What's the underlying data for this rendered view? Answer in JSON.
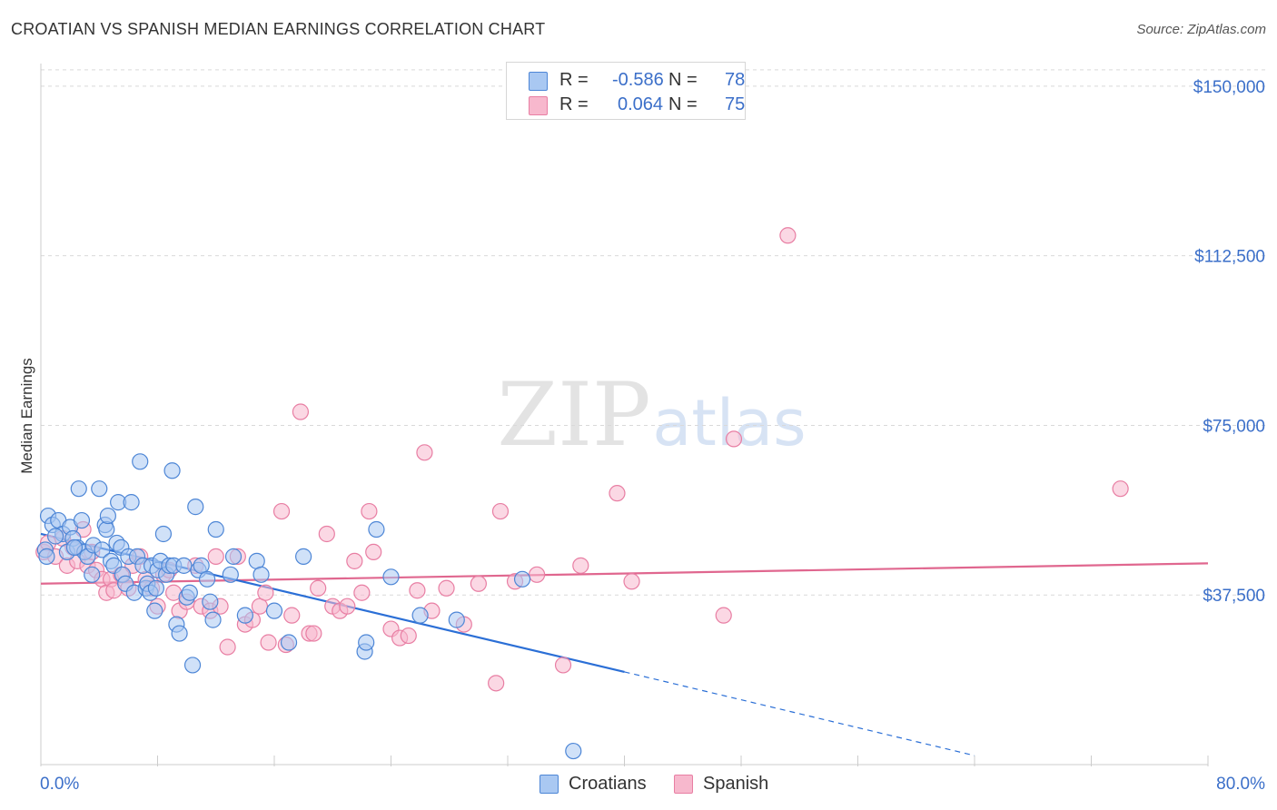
{
  "header": {
    "title": "CROATIAN VS SPANISH MEDIAN EARNINGS CORRELATION CHART",
    "source": "Source: ZipAtlas.com"
  },
  "watermark": {
    "zip": "ZIP",
    "atlas": "atlas"
  },
  "legend": {
    "rows": [
      {
        "r_label": "R =",
        "r_value": "-0.586",
        "n_label": "N =",
        "n_value": "78"
      },
      {
        "r_label": "R =",
        "r_value": "0.064",
        "n_label": "N =",
        "n_value": "75"
      }
    ]
  },
  "bottom_legend": {
    "croatians": "Croatians",
    "spanish": "Spanish"
  },
  "colors": {
    "croatians_fill": "#a9c8f2",
    "croatians_stroke": "#4d86d6",
    "croatians_line": "#2b6fd6",
    "spanish_fill": "#f7b8cd",
    "spanish_stroke": "#e87ea3",
    "spanish_line": "#e0678f",
    "tick_text": "#3b6fc9",
    "grid": "#d9d9d9"
  },
  "chart_data": {
    "type": "scatter",
    "title": "CROATIAN VS SPANISH MEDIAN EARNINGS CORRELATION CHART",
    "xlabel": "",
    "ylabel": "Median Earnings",
    "xlim": [
      0,
      80
    ],
    "ylim": [
      0,
      155000
    ],
    "x_tick_labels": [
      "0.0%",
      "80.0%"
    ],
    "y_ticks": [
      37500,
      75000,
      112500,
      150000
    ],
    "y_tick_labels": [
      "$37,500",
      "$75,000",
      "$112,500",
      "$150,000"
    ],
    "grid": true,
    "series": [
      {
        "name": "Croatians",
        "r": -0.586,
        "n": 78,
        "trend": {
          "x0": 0,
          "y0": 51000,
          "x1": 40,
          "y1": 20500,
          "dash_to_x": 64,
          "dash_to_y": 2000
        },
        "points": [
          [
            0.3,
            47500
          ],
          [
            0.4,
            46000
          ],
          [
            0.5,
            55000
          ],
          [
            0.8,
            53000
          ],
          [
            1.2,
            54000
          ],
          [
            1.5,
            51000
          ],
          [
            1.8,
            47000
          ],
          [
            2.0,
            52500
          ],
          [
            2.2,
            50000
          ],
          [
            2.5,
            48000
          ],
          [
            2.6,
            61000
          ],
          [
            2.8,
            54000
          ],
          [
            3.0,
            47000
          ],
          [
            3.2,
            46000
          ],
          [
            3.5,
            42000
          ],
          [
            3.6,
            48500
          ],
          [
            4.0,
            61000
          ],
          [
            4.2,
            47500
          ],
          [
            4.4,
            53000
          ],
          [
            4.5,
            52000
          ],
          [
            4.6,
            55000
          ],
          [
            4.8,
            45000
          ],
          [
            5.0,
            44000
          ],
          [
            5.2,
            49000
          ],
          [
            5.3,
            58000
          ],
          [
            5.5,
            48000
          ],
          [
            5.6,
            42000
          ],
          [
            5.8,
            40000
          ],
          [
            6.0,
            46000
          ],
          [
            6.2,
            58000
          ],
          [
            6.4,
            38000
          ],
          [
            6.6,
            46000
          ],
          [
            6.8,
            67000
          ],
          [
            7.0,
            44000
          ],
          [
            7.2,
            39000
          ],
          [
            7.3,
            40000
          ],
          [
            7.5,
            38000
          ],
          [
            7.6,
            44000
          ],
          [
            7.8,
            34000
          ],
          [
            7.9,
            39000
          ],
          [
            8.0,
            43000
          ],
          [
            8.2,
            45000
          ],
          [
            8.4,
            51000
          ],
          [
            8.6,
            42000
          ],
          [
            8.8,
            44000
          ],
          [
            9.0,
            65000
          ],
          [
            9.1,
            44000
          ],
          [
            9.3,
            31000
          ],
          [
            9.5,
            29000
          ],
          [
            9.8,
            44000
          ],
          [
            10.0,
            37000
          ],
          [
            10.2,
            38000
          ],
          [
            10.4,
            22000
          ],
          [
            10.6,
            57000
          ],
          [
            10.8,
            43000
          ],
          [
            11.0,
            44000
          ],
          [
            11.4,
            41000
          ],
          [
            11.6,
            36000
          ],
          [
            11.8,
            32000
          ],
          [
            12.0,
            52000
          ],
          [
            13.0,
            42000
          ],
          [
            13.2,
            46000
          ],
          [
            14.0,
            33000
          ],
          [
            14.8,
            45000
          ],
          [
            15.1,
            42000
          ],
          [
            16.0,
            34000
          ],
          [
            17.0,
            27000
          ],
          [
            18.0,
            46000
          ],
          [
            22.2,
            25000
          ],
          [
            22.3,
            27000
          ],
          [
            23.0,
            52000
          ],
          [
            24.0,
            41500
          ],
          [
            26.0,
            33000
          ],
          [
            28.5,
            32000
          ],
          [
            33.0,
            41000
          ],
          [
            36.5,
            3000
          ],
          [
            1.0,
            50500
          ],
          [
            2.3,
            48000
          ]
        ]
      },
      {
        "name": "Spanish",
        "r": 0.064,
        "n": 75,
        "trend": {
          "x0": 0,
          "y0": 40000,
          "x1": 80,
          "y1": 44500
        },
        "points": [
          [
            0.2,
            47000
          ],
          [
            0.5,
            49000
          ],
          [
            1.0,
            46000
          ],
          [
            1.5,
            50000
          ],
          [
            1.8,
            44000
          ],
          [
            2.2,
            48000
          ],
          [
            2.5,
            45000
          ],
          [
            2.9,
            52000
          ],
          [
            3.2,
            44000
          ],
          [
            3.5,
            47000
          ],
          [
            3.8,
            43000
          ],
          [
            4.2,
            41000
          ],
          [
            4.5,
            38000
          ],
          [
            4.8,
            41000
          ],
          [
            5.0,
            38500
          ],
          [
            5.5,
            42000
          ],
          [
            6.0,
            39000
          ],
          [
            6.3,
            44000
          ],
          [
            6.8,
            46000
          ],
          [
            7.2,
            41000
          ],
          [
            7.6,
            39000
          ],
          [
            8.0,
            35000
          ],
          [
            8.4,
            42000
          ],
          [
            8.8,
            43000
          ],
          [
            9.1,
            38000
          ],
          [
            9.5,
            34000
          ],
          [
            10.0,
            36000
          ],
          [
            10.6,
            44000
          ],
          [
            11.0,
            35000
          ],
          [
            11.6,
            34000
          ],
          [
            12.0,
            46000
          ],
          [
            12.3,
            35000
          ],
          [
            12.8,
            26000
          ],
          [
            13.5,
            46000
          ],
          [
            14.0,
            31000
          ],
          [
            14.5,
            32000
          ],
          [
            15.0,
            35000
          ],
          [
            15.4,
            38000
          ],
          [
            15.6,
            27000
          ],
          [
            16.5,
            56000
          ],
          [
            16.8,
            26500
          ],
          [
            17.2,
            33000
          ],
          [
            17.8,
            78000
          ],
          [
            18.4,
            29000
          ],
          [
            18.7,
            29000
          ],
          [
            19.0,
            39000
          ],
          [
            19.6,
            51000
          ],
          [
            20.0,
            35000
          ],
          [
            20.5,
            34000
          ],
          [
            21.0,
            35000
          ],
          [
            21.5,
            45000
          ],
          [
            22.0,
            38000
          ],
          [
            22.5,
            56000
          ],
          [
            22.8,
            47000
          ],
          [
            24.0,
            30000
          ],
          [
            24.6,
            28000
          ],
          [
            25.2,
            28500
          ],
          [
            25.8,
            38500
          ],
          [
            26.3,
            69000
          ],
          [
            26.8,
            34000
          ],
          [
            27.8,
            39000
          ],
          [
            29.0,
            31000
          ],
          [
            30.0,
            40000
          ],
          [
            31.5,
            56000
          ],
          [
            31.2,
            18000
          ],
          [
            32.5,
            40500
          ],
          [
            34.0,
            42000
          ],
          [
            35.8,
            22000
          ],
          [
            37.0,
            44000
          ],
          [
            39.5,
            60000
          ],
          [
            40.5,
            40500
          ],
          [
            46.8,
            33000
          ],
          [
            47.5,
            72000
          ],
          [
            51.2,
            117000
          ],
          [
            74.0,
            61000
          ]
        ]
      }
    ]
  }
}
